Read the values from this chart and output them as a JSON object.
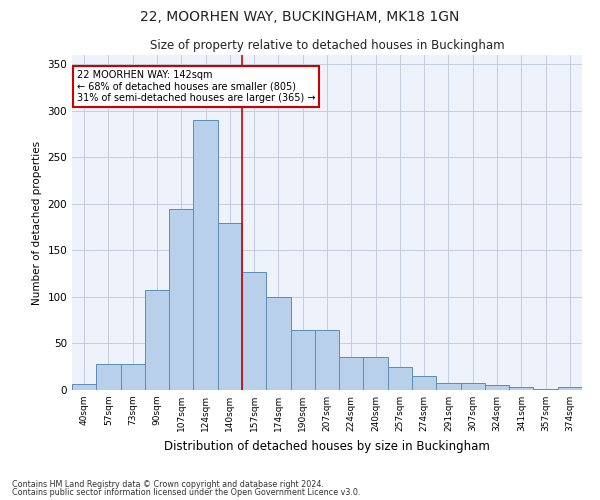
{
  "title1": "22, MOORHEN WAY, BUCKINGHAM, MK18 1GN",
  "title2": "Size of property relative to detached houses in Buckingham",
  "xlabel": "Distribution of detached houses by size in Buckingham",
  "ylabel": "Number of detached properties",
  "footnote1": "Contains HM Land Registry data © Crown copyright and database right 2024.",
  "footnote2": "Contains public sector information licensed under the Open Government Licence v3.0.",
  "annotation_line1": "22 MOORHEN WAY: 142sqm",
  "annotation_line2": "← 68% of detached houses are smaller (805)",
  "annotation_line3": "31% of semi-detached houses are larger (365) →",
  "bar_labels": [
    "40sqm",
    "57sqm",
    "73sqm",
    "90sqm",
    "107sqm",
    "124sqm",
    "140sqm",
    "157sqm",
    "174sqm",
    "190sqm",
    "207sqm",
    "224sqm",
    "240sqm",
    "257sqm",
    "274sqm",
    "291sqm",
    "307sqm",
    "324sqm",
    "341sqm",
    "357sqm",
    "374sqm"
  ],
  "bar_values": [
    6,
    28,
    28,
    107,
    195,
    290,
    180,
    127,
    100,
    65,
    65,
    35,
    35,
    25,
    15,
    8,
    8,
    5,
    3,
    1,
    3
  ],
  "bar_color": "#b8d0ea",
  "bar_edge_color": "#5b8db8",
  "property_line_x": 6.5,
  "property_line_color": "#cc0000",
  "annotation_box_color": "#cc0000",
  "background_color": "#eef2fb",
  "grid_color": "#c5cce0",
  "ylim": [
    0,
    360
  ],
  "yticks": [
    0,
    50,
    100,
    150,
    200,
    250,
    300,
    350
  ]
}
